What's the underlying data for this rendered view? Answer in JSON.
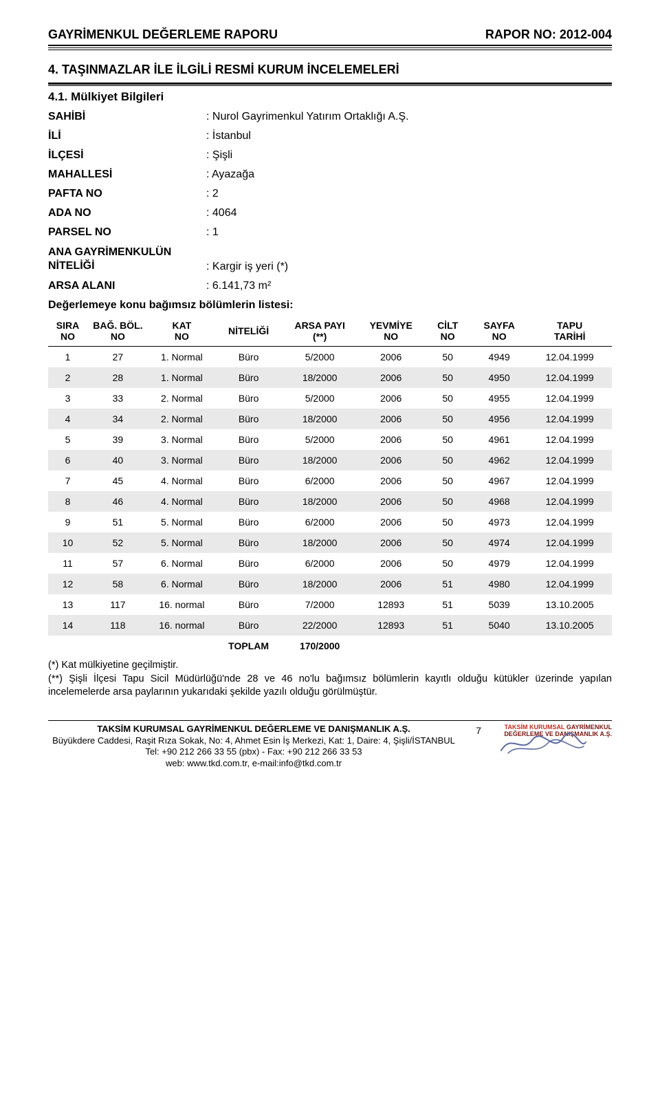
{
  "header": {
    "left": "GAYRİMENKUL DEĞERLEME RAPORU",
    "right": "RAPOR NO: 2012-004"
  },
  "section_title": "4. TAŞINMAZLAR İLE İLGİLİ RESMİ KURUM İNCELEMELERİ",
  "subsection_title": "4.1. Mülkiyet Bilgileri",
  "info": {
    "sahibi_label": "SAHİBİ",
    "sahibi": "Nurol Gayrimenkul Yatırım Ortaklığı A.Ş.",
    "ili_label": "İLİ",
    "ili": "İstanbul",
    "ilcesi_label": "İLÇESİ",
    "ilcesi": "Şişli",
    "mahallesi_label": "MAHALLESİ",
    "mahallesi": "Ayazağa",
    "pafta_label": "PAFTA NO",
    "pafta": "2",
    "ada_label": "ADA NO",
    "ada": "4064",
    "parsel_label": "PARSEL NO",
    "parsel": "1",
    "nitelik_label": "ANA GAYRİMENKULÜN NİTELİĞİ",
    "nitelik": "Kargir iş yeri (*)",
    "arsa_label": "ARSA ALANI",
    "arsa": "6.141,73 m²"
  },
  "list_title": "Değerlemeye konu bağımsız bölümlerin listesi:",
  "table": {
    "columns": [
      "SIRA\nNO",
      "BAĞ. BÖL.\nNO",
      "KAT\nNO",
      "NİTELİĞİ",
      "ARSA PAYI\n(**)",
      "YEVMİYE\nNO",
      "CİLT\nNO",
      "SAYFA\nNO",
      "TAPU\nTARİHİ"
    ],
    "col_widths": [
      "54px",
      "84px",
      "92px",
      "92px",
      "104px",
      "92px",
      "64px",
      "78px",
      "116px"
    ],
    "rows": [
      [
        "1",
        "27",
        "1. Normal",
        "Büro",
        "5/2000",
        "2006",
        "50",
        "4949",
        "12.04.1999"
      ],
      [
        "2",
        "28",
        "1. Normal",
        "Büro",
        "18/2000",
        "2006",
        "50",
        "4950",
        "12.04.1999"
      ],
      [
        "3",
        "33",
        "2. Normal",
        "Büro",
        "5/2000",
        "2006",
        "50",
        "4955",
        "12.04.1999"
      ],
      [
        "4",
        "34",
        "2. Normal",
        "Büro",
        "18/2000",
        "2006",
        "50",
        "4956",
        "12.04.1999"
      ],
      [
        "5",
        "39",
        "3. Normal",
        "Büro",
        "5/2000",
        "2006",
        "50",
        "4961",
        "12.04.1999"
      ],
      [
        "6",
        "40",
        "3. Normal",
        "Büro",
        "18/2000",
        "2006",
        "50",
        "4962",
        "12.04.1999"
      ],
      [
        "7",
        "45",
        "4. Normal",
        "Büro",
        "6/2000",
        "2006",
        "50",
        "4967",
        "12.04.1999"
      ],
      [
        "8",
        "46",
        "4. Normal",
        "Büro",
        "18/2000",
        "2006",
        "50",
        "4968",
        "12.04.1999"
      ],
      [
        "9",
        "51",
        "5. Normal",
        "Büro",
        "6/2000",
        "2006",
        "50",
        "4973",
        "12.04.1999"
      ],
      [
        "10",
        "52",
        "5. Normal",
        "Büro",
        "18/2000",
        "2006",
        "50",
        "4974",
        "12.04.1999"
      ],
      [
        "11",
        "57",
        "6. Normal",
        "Büro",
        "6/2000",
        "2006",
        "50",
        "4979",
        "12.04.1999"
      ],
      [
        "12",
        "58",
        "6. Normal",
        "Büro",
        "18/2000",
        "2006",
        "51",
        "4980",
        "12.04.1999"
      ],
      [
        "13",
        "117",
        "16. normal",
        "Büro",
        "7/2000",
        "12893",
        "51",
        "5039",
        "13.10.2005"
      ],
      [
        "14",
        "118",
        "16. normal",
        "Büro",
        "22/2000",
        "12893",
        "51",
        "5040",
        "13.10.2005"
      ]
    ],
    "total_label": "TOPLAM",
    "total_value": "170/2000",
    "shade_color": "#e9e9e9"
  },
  "footnotes": {
    "line1": "(*)  Kat mülkiyetine geçilmiştir.",
    "line2": "(**) Şişli İlçesi Tapu Sicil Müdürlüğü'nde 28 ve 46 no'lu bağımsız bölümlerin kayıtlı olduğu kütükler üzerinde yapılan incelemelerde arsa paylarının yukarıdaki şekilde yazılı olduğu görülmüştür."
  },
  "footer": {
    "company": "TAKSİM KURUMSAL GAYRİMENKUL DEĞERLEME VE DANIŞMANLIK A.Ş.",
    "address": "Büyükdere Caddesi, Raşit Rıza Sokak, No: 4, Ahmet Esin İş Merkezi, Kat: 1, Daire: 4, Şişli/İSTANBUL",
    "tel": "Tel: +90 212 266 33 55 (pbx) - Fax: +90 212 266 33 53",
    "web": "web: www.tkd.com.tr, e-mail:info@tkd.com.tr",
    "page_number": "7",
    "logo_line1": "TAKSİM KURUMSAL",
    "logo_line2": "GAYRİMENKUL",
    "logo_line3": "DEĞERLEME VE DANIŞMANLIK A.Ş."
  },
  "colors": {
    "text": "#000000",
    "shade": "#e9e9e9",
    "logo_red1": "#c82b1e",
    "logo_red2": "#7a1610",
    "sig": "#5b6aa0"
  }
}
